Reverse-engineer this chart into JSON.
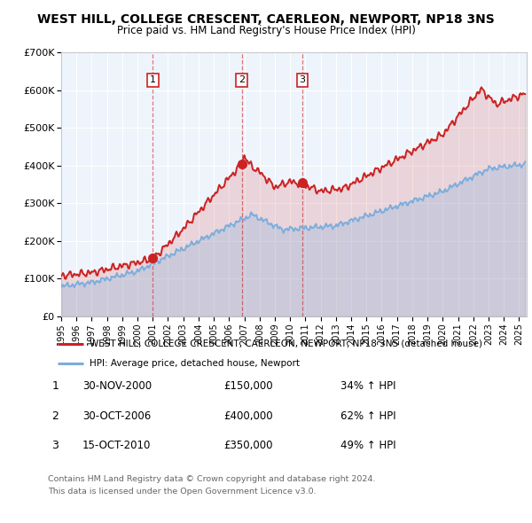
{
  "title": "WEST HILL, COLLEGE CRESCENT, CAERLEON, NEWPORT, NP18 3NS",
  "subtitle": "Price paid vs. HM Land Registry's House Price Index (HPI)",
  "ylim": [
    0,
    700000
  ],
  "yticks": [
    0,
    100000,
    200000,
    300000,
    400000,
    500000,
    600000,
    700000
  ],
  "ytick_labels": [
    "£0",
    "£100K",
    "£200K",
    "£300K",
    "£400K",
    "£500K",
    "£600K",
    "£700K"
  ],
  "xlim_start": 1995.0,
  "xlim_end": 2025.5,
  "sales": [
    {
      "label": "1",
      "date_num": 2001.0,
      "price": 150000,
      "date_str": "30-NOV-2000"
    },
    {
      "label": "2",
      "date_num": 2006.83,
      "price": 400000,
      "date_str": "30-OCT-2006"
    },
    {
      "label": "3",
      "date_num": 2010.79,
      "price": 350000,
      "date_str": "15-OCT-2010"
    }
  ],
  "legend_line1": "WEST HILL, COLLEGE CRESCENT, CAERLEON, NEWPORT, NP18 3NS (detached house)",
  "legend_line2": "HPI: Average price, detached house, Newport",
  "footer1": "Contains HM Land Registry data © Crown copyright and database right 2024.",
  "footer2": "This data is licensed under the Open Government Licence v3.0.",
  "table_rows": [
    [
      "1",
      "30-NOV-2000",
      "£150,000",
      "34% ↑ HPI"
    ],
    [
      "2",
      "30-OCT-2006",
      "£400,000",
      "62% ↑ HPI"
    ],
    [
      "3",
      "15-OCT-2010",
      "£350,000",
      "49% ↑ HPI"
    ]
  ],
  "red_line_color": "#cc2222",
  "blue_line_color": "#7aaddd",
  "chart_bg_color": "#eef4fb",
  "bg_color": "#ffffff",
  "grid_color": "#ffffff"
}
